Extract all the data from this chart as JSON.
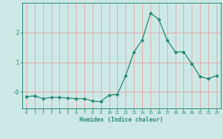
{
  "x": [
    0,
    1,
    2,
    3,
    4,
    5,
    6,
    7,
    8,
    9,
    10,
    11,
    12,
    13,
    14,
    15,
    16,
    17,
    18,
    19,
    20,
    21,
    22,
    23
  ],
  "y": [
    -0.15,
    -0.13,
    -0.22,
    -0.18,
    -0.18,
    -0.2,
    -0.22,
    -0.22,
    -0.3,
    -0.32,
    -0.1,
    -0.08,
    0.55,
    1.35,
    1.75,
    2.65,
    2.45,
    1.75,
    1.35,
    1.35,
    0.95,
    0.52,
    0.45,
    0.55
  ],
  "line_color": "#2e8b77",
  "marker": "D",
  "marker_size": 2,
  "line_width": 1.0,
  "xlabel": "Humidex (Indice chaleur)",
  "xlabel_fontsize": 6,
  "yticks": [
    0,
    1,
    2
  ],
  "ytick_labels": [
    "-0",
    "1",
    "2"
  ],
  "xtick_labels": [
    "0",
    "1",
    "2",
    "3",
    "4",
    "5",
    "6",
    "7",
    "8",
    "9",
    "10",
    "11",
    "12",
    "13",
    "14",
    "15",
    "16",
    "17",
    "18",
    "19",
    "20",
    "21",
    "22",
    "23"
  ],
  "ylim": [
    -0.55,
    3.0
  ],
  "xlim": [
    -0.5,
    23.5
  ],
  "bg_color": "#cce9e5",
  "grid_color": "#e8a0a0",
  "tick_color": "#2e8b77",
  "label_color": "#2e8b77",
  "spine_color": "#2e8b77"
}
